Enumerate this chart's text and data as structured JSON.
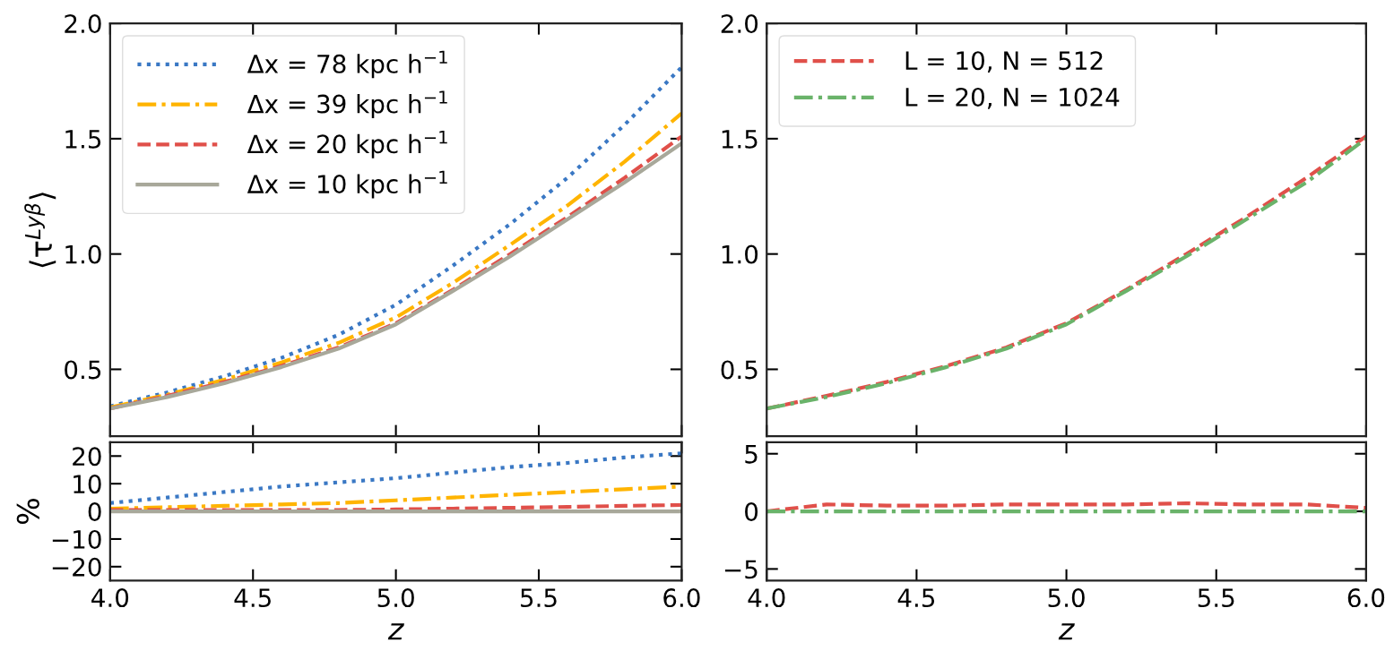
{
  "chart_data": [
    {
      "type": "line",
      "ylabel": "⟨τ$^{Lyβ}$⟩",
      "x": [
        4.0,
        4.2,
        4.4,
        4.6,
        4.8,
        5.0,
        5.2,
        5.4,
        5.6,
        5.8,
        6.0
      ],
      "xlim": [
        4.0,
        6.0
      ],
      "xticks": [
        4.0,
        4.5,
        5.0,
        5.5,
        6.0
      ],
      "ylim": [
        0.21,
        2.0
      ],
      "yticks": [
        0.5,
        {
          "value": 1,
          "label": "1.0"
        },
        1.5,
        {
          "value": 2,
          "label": "2.0"
        }
      ],
      "tick_labels": "y",
      "legend": "top left",
      "grid": false,
      "marker": "none",
      "series": [
        {
          "name": "Δx = 78 kpc h$^{−1}$",
          "color": "#3a78c4",
          "line_style": "dotted",
          "values": [
            0.34,
            0.4,
            0.47,
            0.55,
            0.65,
            0.78,
            0.95,
            1.13,
            1.33,
            1.56,
            1.81
          ]
        },
        {
          "name": "Δx = 39 kpc h$^{−1}$",
          "color": "#ffb400",
          "line_style": "dashdot",
          "values": [
            0.335,
            0.39,
            0.455,
            0.53,
            0.615,
            0.725,
            0.875,
            1.04,
            1.21,
            1.4,
            1.61
          ]
        },
        {
          "name": "Δx = 20 kpc h$^{−1}$",
          "color": "#e0504a",
          "line_style": "dashed",
          "values": [
            0.33,
            0.385,
            0.445,
            0.515,
            0.595,
            0.7,
            0.845,
            1.0,
            1.16,
            1.33,
            1.51
          ]
        },
        {
          "name": "Δx = 10 kpc h$^{−1}$",
          "color": "#a8a89a",
          "line_style": "solid",
          "values": [
            0.33,
            0.38,
            0.44,
            0.51,
            0.59,
            0.695,
            0.84,
            0.99,
            1.15,
            1.31,
            1.48
          ]
        }
      ]
    },
    {
      "type": "line",
      "x": [
        4.0,
        4.2,
        4.4,
        4.6,
        4.8,
        5.0,
        5.2,
        5.4,
        5.6,
        5.8,
        6.0
      ],
      "xlim": [
        4.0,
        6.0
      ],
      "xticks": [
        4.0,
        4.5,
        5.0,
        5.5,
        6.0
      ],
      "ylim": [
        0.21,
        2.0
      ],
      "yticks": [
        0.5,
        {
          "value": 1,
          "label": "1.0"
        },
        1.5,
        {
          "value": 2,
          "label": "2.0"
        }
      ],
      "tick_labels": "y",
      "legend": "top left",
      "grid": false,
      "marker": "none",
      "series": [
        {
          "name": "L = 10, N = 512",
          "color": "#e0504a",
          "line_style": "dashed",
          "values": [
            0.33,
            0.385,
            0.445,
            0.515,
            0.595,
            0.7,
            0.845,
            1.0,
            1.16,
            1.33,
            1.51
          ]
        },
        {
          "name": "L = 20, N = 1024",
          "color": "#6ab36a",
          "line_style": "dashdot",
          "values": [
            0.33,
            0.38,
            0.44,
            0.51,
            0.59,
            0.695,
            0.84,
            0.99,
            1.15,
            1.31,
            1.5
          ]
        }
      ]
    },
    {
      "type": "line",
      "xlabel": "z",
      "ylabel": "%",
      "x": [
        4.0,
        4.2,
        4.4,
        4.6,
        4.8,
        5.0,
        5.2,
        5.4,
        5.6,
        5.8,
        6.0
      ],
      "xlim": [
        4.0,
        6.0
      ],
      "xticks": [
        {
          "value": 4,
          "label": "4.0"
        },
        4.5,
        {
          "value": 5,
          "label": "5.0"
        },
        5.5,
        {
          "value": 6,
          "label": "6.0"
        }
      ],
      "ylim": [
        -25,
        25
      ],
      "yticks": [
        {
          "value": -20,
          "label": "−20"
        },
        {
          "value": -10,
          "label": "−10"
        },
        0,
        10,
        20
      ],
      "grid": false,
      "marker": "none",
      "series": [
        {
          "color": "#3a78c4",
          "line_style": "dotted",
          "values": [
            3,
            5,
            7,
            9,
            10.5,
            12,
            14,
            16,
            17.5,
            19.5,
            21
          ]
        },
        {
          "color": "#ffb400",
          "line_style": "dashdot",
          "values": [
            1,
            1.5,
            2,
            2.5,
            3,
            4,
            5,
            6,
            7,
            8,
            9
          ]
        },
        {
          "color": "#e0504a",
          "line_style": "dashed",
          "values": [
            0.5,
            0.5,
            0.5,
            0.5,
            0.5,
            0.7,
            1,
            1.3,
            1.6,
            2,
            2.3
          ]
        },
        {
          "color": "#a8a89a",
          "line_style": "solid",
          "values": [
            0,
            0,
            0,
            0,
            0,
            0,
            0,
            0,
            0,
            0,
            0
          ]
        }
      ]
    },
    {
      "type": "line",
      "xlabel": "z",
      "x": [
        4.0,
        4.2,
        4.4,
        4.6,
        4.8,
        5.0,
        5.2,
        5.4,
        5.6,
        5.8,
        6.0
      ],
      "xlim": [
        4.0,
        6.0
      ],
      "xticks": [
        {
          "value": 4,
          "label": "4.0"
        },
        4.5,
        {
          "value": 5,
          "label": "5.0"
        },
        5.5,
        {
          "value": 6,
          "label": "6.0"
        }
      ],
      "ylim": [
        -6,
        6
      ],
      "yticks": [
        {
          "value": -5,
          "label": "−5"
        },
        0,
        5
      ],
      "grid": false,
      "marker": "none",
      "series": [
        {
          "color": "#e0504a",
          "line_style": "dashed",
          "values": [
            0,
            0.6,
            0.5,
            0.5,
            0.6,
            0.6,
            0.6,
            0.7,
            0.6,
            0.6,
            0.3
          ]
        },
        {
          "color": "#6ab36a",
          "line_style": "dashdot",
          "values": [
            0,
            0,
            0,
            0,
            0,
            0,
            0,
            0,
            0,
            0,
            0
          ]
        }
      ]
    }
  ]
}
